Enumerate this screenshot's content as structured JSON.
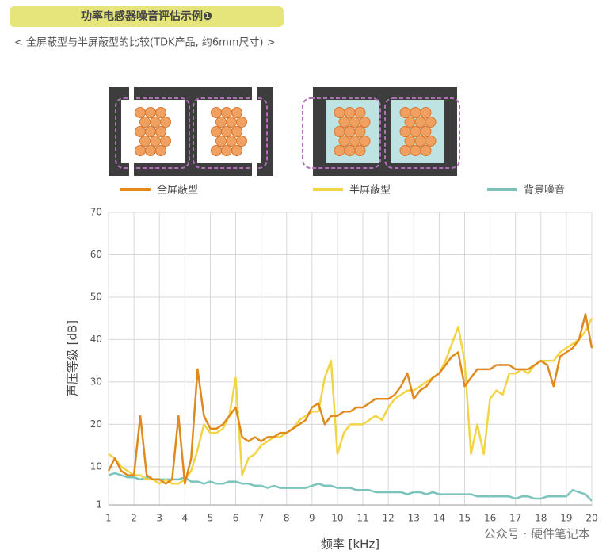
{
  "chart_data": {
    "type": "line",
    "title": "功率电感器噪音评估示例❶",
    "subtitle": "< 全屏蔽型与半屏蔽型的比较(TDK产品, 约6mm尺寸) >",
    "x_label": "频率 [kHz]",
    "y_label": "声压等级 [dB]",
    "watermark": "公众号 · 硬件笔记本",
    "xlim": [
      1,
      20
    ],
    "ylim": [
      1,
      70
    ],
    "xticks": [
      1,
      2,
      3,
      4,
      5,
      6,
      7,
      8,
      9,
      10,
      11,
      12,
      13,
      14,
      15,
      16,
      17,
      18,
      19,
      20
    ],
    "yticks": [
      1,
      10,
      20,
      30,
      40,
      50,
      60,
      70
    ],
    "grid": true,
    "x": [
      1,
      1.25,
      1.5,
      1.75,
      2,
      2.25,
      2.5,
      2.75,
      3,
      3.25,
      3.5,
      3.75,
      4,
      4.25,
      4.5,
      4.75,
      5,
      5.25,
      5.5,
      5.75,
      6,
      6.25,
      6.5,
      6.75,
      7,
      7.25,
      7.5,
      7.75,
      8,
      8.25,
      8.5,
      8.75,
      9,
      9.25,
      9.5,
      9.75,
      10,
      10.25,
      10.5,
      10.75,
      11,
      11.25,
      11.5,
      11.75,
      12,
      12.25,
      12.5,
      12.75,
      13,
      13.25,
      13.5,
      13.75,
      14,
      14.25,
      14.5,
      14.75,
      15,
      15.25,
      15.5,
      15.75,
      16,
      16.25,
      16.5,
      16.75,
      17,
      17.25,
      17.5,
      17.75,
      18,
      18.25,
      18.5,
      18.75,
      19,
      19.25,
      19.5,
      19.75,
      20
    ],
    "series": [
      {
        "name": "全屏蔽型",
        "color": "#e08a1e",
        "values": [
          9,
          12,
          9,
          8,
          8,
          22,
          8,
          7,
          7,
          6,
          7,
          22,
          6,
          12,
          33,
          22,
          19,
          19,
          20,
          22,
          24,
          17,
          16,
          17,
          16,
          17,
          17,
          18,
          18,
          19,
          20,
          21,
          24,
          25,
          20,
          22,
          22,
          23,
          23,
          24,
          24,
          25,
          26,
          26,
          26,
          27,
          29,
          32,
          26,
          28,
          29,
          31,
          32,
          34,
          36,
          37,
          29,
          31,
          33,
          33,
          33,
          34,
          34,
          34,
          33,
          33,
          33,
          34,
          35,
          34,
          29,
          36,
          37,
          38,
          40,
          46,
          38
        ]
      },
      {
        "name": "半屏蔽型",
        "color": "#f2d445",
        "values": [
          13,
          12,
          10,
          9,
          8,
          8,
          7,
          7,
          6,
          7,
          6,
          6,
          7,
          9,
          14,
          20,
          18,
          18,
          19,
          22,
          31,
          8,
          12,
          13,
          15,
          16,
          17,
          17,
          18,
          19,
          21,
          22,
          23,
          23,
          31,
          35,
          13,
          18,
          20,
          20,
          20,
          21,
          22,
          21,
          24,
          26,
          27,
          28,
          28,
          29,
          30,
          31,
          32,
          35,
          39,
          43,
          35,
          13,
          20,
          13,
          26,
          28,
          27,
          32,
          32,
          33,
          32,
          34,
          35,
          35,
          35,
          37,
          38,
          39,
          40,
          42,
          45
        ]
      },
      {
        "name": "背景噪音",
        "color": "#7cc4bb",
        "values": [
          8,
          8.5,
          8,
          7.5,
          7.5,
          7,
          7.5,
          7,
          7,
          7,
          7,
          7,
          7.5,
          6.5,
          6.5,
          6,
          6.5,
          6,
          6,
          6.5,
          6.5,
          6,
          6,
          5.5,
          5.5,
          5,
          5.5,
          5,
          5,
          5,
          5,
          5,
          5.5,
          6,
          5.5,
          5.5,
          5,
          5,
          5,
          4.5,
          4.5,
          4.5,
          4,
          4,
          4,
          4,
          4,
          3.5,
          4,
          4,
          3.5,
          4,
          3.5,
          3.5,
          3.5,
          3.5,
          3.5,
          3.5,
          3,
          3,
          3,
          3,
          3,
          3,
          2.5,
          3,
          3,
          2.5,
          2.5,
          3,
          3,
          3,
          3,
          4.5,
          4,
          3.5,
          2
        ]
      }
    ]
  }
}
